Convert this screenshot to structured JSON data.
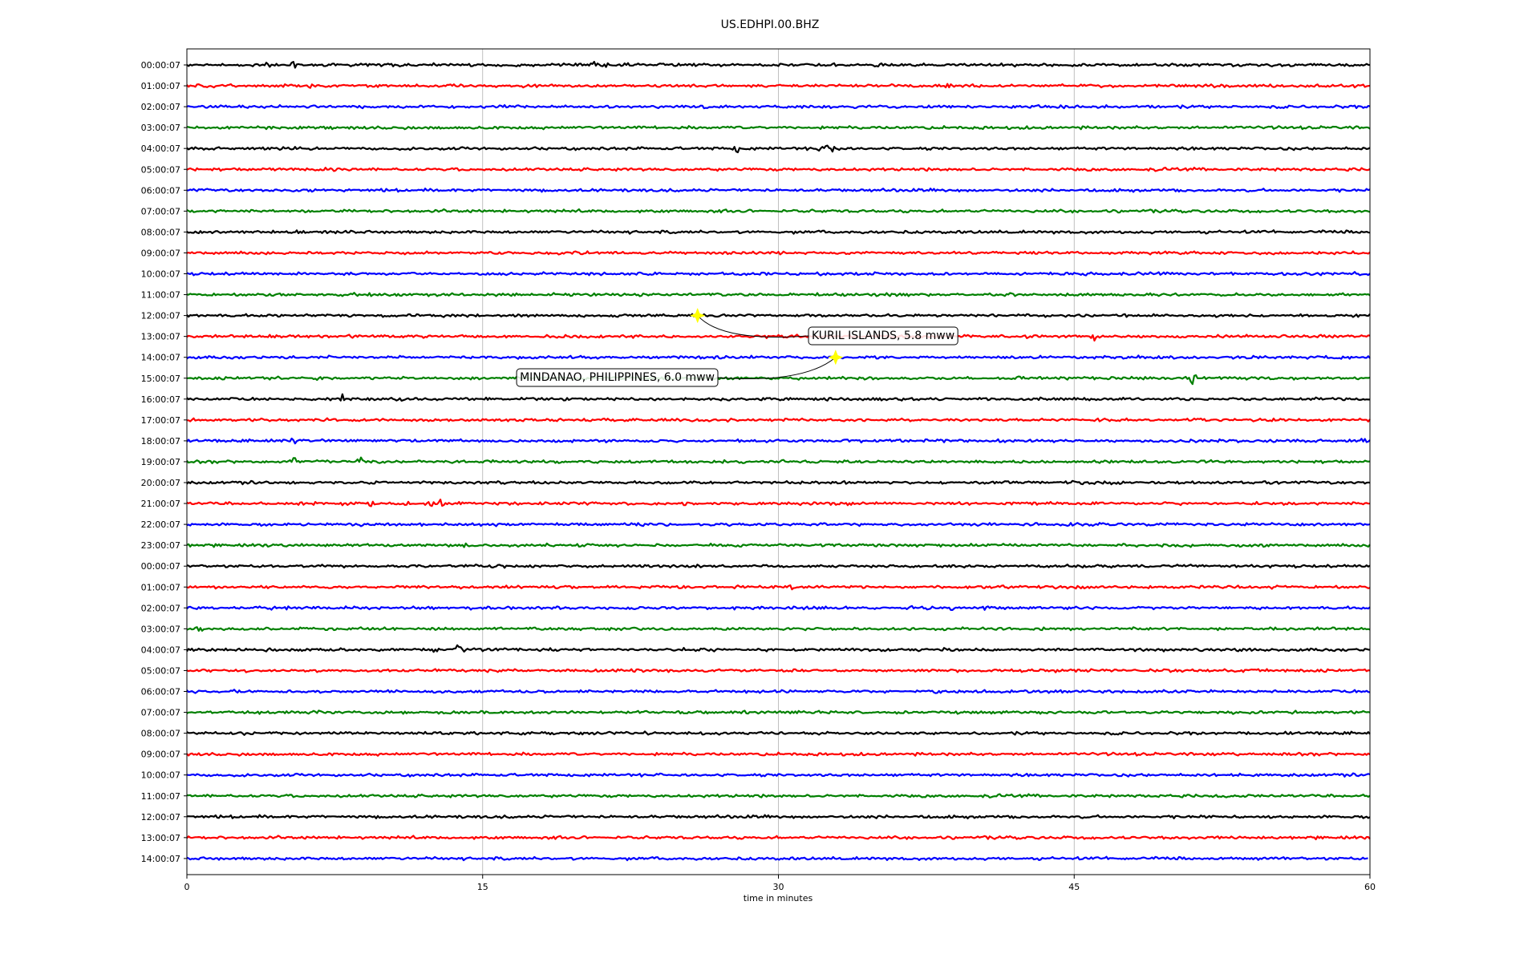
{
  "chart_data": {
    "type": "line",
    "title": "US.EDHPI.00.BHZ",
    "xlabel": "time in minutes",
    "ylabel": "",
    "xlim": [
      0,
      60
    ],
    "xticks": [
      0,
      15,
      30,
      45,
      60
    ],
    "grid": "vertical lines at x ticks",
    "colors": [
      "#000000",
      "#ff0000",
      "#0000ff",
      "#008000"
    ],
    "rows": [
      "00:00:07",
      "01:00:07",
      "02:00:07",
      "03:00:07",
      "04:00:07",
      "05:00:07",
      "06:00:07",
      "07:00:07",
      "08:00:07",
      "09:00:07",
      "10:00:07",
      "11:00:07",
      "12:00:07",
      "13:00:07",
      "14:00:07",
      "15:00:07",
      "16:00:07",
      "17:00:07",
      "18:00:07",
      "19:00:07",
      "20:00:07",
      "21:00:07",
      "22:00:07",
      "23:00:07",
      "00:00:07",
      "01:00:07",
      "02:00:07",
      "03:00:07",
      "04:00:07",
      "05:00:07",
      "06:00:07",
      "07:00:07",
      "08:00:07",
      "09:00:07",
      "10:00:07",
      "11:00:07",
      "12:00:07",
      "13:00:07",
      "14:00:07"
    ],
    "last_row_end_minute": 59.9,
    "bursts": [
      {
        "row": 0,
        "minute": 4.1,
        "amp": 1.0
      },
      {
        "row": 0,
        "minute": 5.4,
        "amp": 1.3
      },
      {
        "row": 0,
        "minute": 20.7,
        "amp": 1.4
      },
      {
        "row": 0,
        "minute": 21.3,
        "amp": 0.8
      },
      {
        "row": 0,
        "minute": 34.9,
        "amp": 0.8
      },
      {
        "row": 1,
        "minute": 3.5,
        "amp": 0.9
      },
      {
        "row": 1,
        "minute": 4.8,
        "amp": 0.8
      },
      {
        "row": 1,
        "minute": 6.3,
        "amp": 1.1
      },
      {
        "row": 1,
        "minute": 38.6,
        "amp": 0.5
      },
      {
        "row": 4,
        "minute": 27.9,
        "amp": 0.9
      },
      {
        "row": 4,
        "minute": 32.0,
        "amp": 0.9
      },
      {
        "row": 4,
        "minute": 32.8,
        "amp": 2.6
      },
      {
        "row": 13,
        "minute": 46.0,
        "amp": 1.6
      },
      {
        "row": 15,
        "minute": 51.0,
        "amp": 1.3
      },
      {
        "row": 16,
        "minute": 7.9,
        "amp": 0.7
      },
      {
        "row": 16,
        "minute": 57.5,
        "amp": 0.4
      },
      {
        "row": 17,
        "minute": 3.9,
        "amp": 0.5
      },
      {
        "row": 17,
        "minute": 14.3,
        "amp": 0.5
      },
      {
        "row": 17,
        "minute": 43.4,
        "amp": 0.4
      },
      {
        "row": 18,
        "minute": 5.4,
        "amp": 0.7
      },
      {
        "row": 18,
        "minute": 20.0,
        "amp": 0.8
      },
      {
        "row": 18,
        "minute": 24.8,
        "amp": 0.4
      },
      {
        "row": 18,
        "minute": 58.9,
        "amp": 0.5
      },
      {
        "row": 18,
        "minute": 59.6,
        "amp": 0.8
      },
      {
        "row": 19,
        "minute": 5.5,
        "amp": 1.2
      },
      {
        "row": 19,
        "minute": 8.8,
        "amp": 0.9
      },
      {
        "row": 19,
        "minute": 30.2,
        "amp": 0.7
      },
      {
        "row": 19,
        "minute": 32.0,
        "amp": 0.6
      },
      {
        "row": 21,
        "minute": 8.7,
        "amp": 0.6
      },
      {
        "row": 21,
        "minute": 9.3,
        "amp": 0.8
      },
      {
        "row": 21,
        "minute": 11.2,
        "amp": 0.6
      },
      {
        "row": 21,
        "minute": 12.3,
        "amp": 1.4
      },
      {
        "row": 21,
        "minute": 12.9,
        "amp": 1.0
      },
      {
        "row": 21,
        "minute": 25.3,
        "amp": 0.6
      },
      {
        "row": 23,
        "minute": 13.2,
        "amp": 0.6
      },
      {
        "row": 23,
        "minute": 14.1,
        "amp": 0.7
      },
      {
        "row": 24,
        "minute": 26.9,
        "amp": 0.8
      },
      {
        "row": 24,
        "minute": 43.8,
        "amp": 0.3
      },
      {
        "row": 25,
        "minute": 30.6,
        "amp": 0.5
      },
      {
        "row": 25,
        "minute": 48.6,
        "amp": 0.4
      },
      {
        "row": 25,
        "minute": 50.4,
        "amp": 0.5
      },
      {
        "row": 26,
        "minute": 36.8,
        "amp": 0.5
      },
      {
        "row": 26,
        "minute": 38.9,
        "amp": 1.1
      },
      {
        "row": 26,
        "minute": 40.6,
        "amp": 0.7
      },
      {
        "row": 26,
        "minute": 57.3,
        "amp": 0.5
      },
      {
        "row": 27,
        "minute": 0.7,
        "amp": 0.9
      },
      {
        "row": 27,
        "minute": 39.8,
        "amp": 0.5
      },
      {
        "row": 28,
        "minute": 12.6,
        "amp": 1.0
      },
      {
        "row": 28,
        "minute": 13.7,
        "amp": 1.7
      },
      {
        "row": 30,
        "minute": 8.8,
        "amp": 0.6
      }
    ],
    "events": [
      {
        "row": 12,
        "minute": 25.9,
        "label": "KURIL ISLANDS, 5.8 mww"
      },
      {
        "row": 14,
        "minute": 32.9,
        "label": "MINDANAO, PHILIPPINES, 6.0 mww"
      }
    ]
  }
}
